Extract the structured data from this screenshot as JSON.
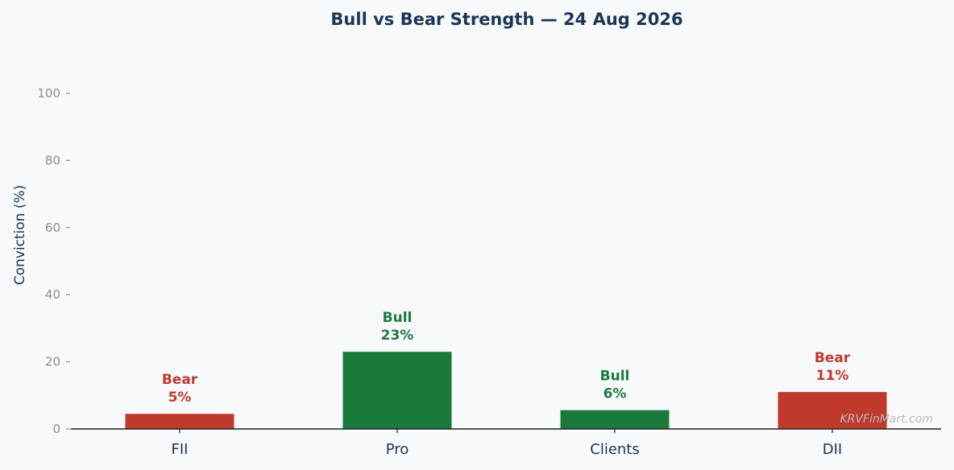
{
  "chart_data": {
    "type": "bar",
    "title": "Bull vs Bear Strength — 24 Aug 2026",
    "ylabel": "Conviction (%)",
    "xlabel": "",
    "ylim": [
      0,
      100
    ],
    "yticks": [
      0,
      20,
      40,
      60,
      80,
      100
    ],
    "grid": false,
    "categories": [
      "FII",
      "Pro",
      "Clients",
      "DII"
    ],
    "values": [
      4.5,
      23,
      5.6,
      11
    ],
    "sentiments": [
      "Bear",
      "Bull",
      "Bull",
      "Bear"
    ],
    "value_labels": [
      "5%",
      "23%",
      "6%",
      "11%"
    ],
    "colors": {
      "Bull": "#1a7a3c",
      "Bear": "#c0392b"
    }
  },
  "watermark": "KRVFinMart.com"
}
